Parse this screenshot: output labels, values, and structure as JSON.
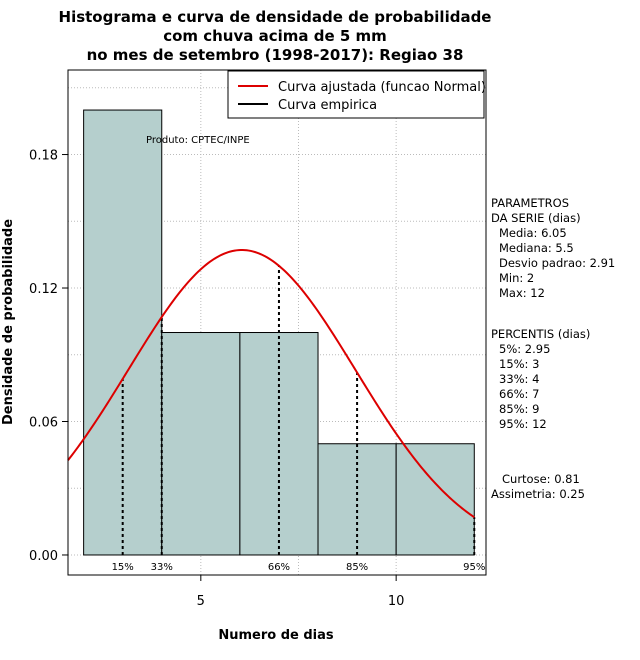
{
  "chart_data": {
    "type": "bar",
    "title": [
      "Histograma e curva de densidade de probabilidade",
      "com chuva acima de 5 mm",
      "no mes de setembro (1998-2017): Regiao 38"
    ],
    "xlabel": "Numero de dias",
    "ylabel": "Densidade de probabilidade",
    "xlim": [
      1.6,
      12.3
    ],
    "ylim": [
      -0.009,
      0.218
    ],
    "x_ticks": [
      5,
      10
    ],
    "y_ticks": [
      0.0,
      0.06,
      0.12,
      0.18
    ],
    "y_tick_labels": [
      "0.00",
      "0.06",
      "0.12",
      "0.18"
    ],
    "grid": true,
    "legend_position": "top-right",
    "bins": [
      {
        "x0": 2,
        "x1": 4,
        "density": 0.2
      },
      {
        "x0": 4,
        "x1": 6,
        "density": 0.1
      },
      {
        "x0": 6,
        "x1": 8,
        "density": 0.1
      },
      {
        "x0": 8,
        "x1": 10,
        "density": 0.05
      },
      {
        "x0": 10,
        "x1": 12,
        "density": 0.05
      }
    ],
    "bar_color": "#b5cfcd",
    "series": [
      {
        "name": "Curva ajustada (funcao Normal)",
        "type": "line",
        "color": "#dd0000",
        "mean": 6.05,
        "sd": 2.91
      },
      {
        "name": "Curva empirica",
        "type": "line",
        "color": "#000000"
      }
    ],
    "percentile_lines": [
      {
        "label": "15%",
        "x": 3
      },
      {
        "label": "33%",
        "x": 4
      },
      {
        "label": "66%",
        "x": 7
      },
      {
        "label": "85%",
        "x": 9
      },
      {
        "label": "95%",
        "x": 12
      }
    ],
    "annotation": "Produto: CPTEC/INPE",
    "side_panel": {
      "parametros": [
        "PARAMETROS",
        "DA SERIE (dias)",
        "Media: 6.05",
        "Mediana: 5.5",
        "Desvio padrao: 2.91",
        "Min: 2",
        "Max: 12"
      ],
      "percentis": [
        "PERCENTIS (dias)",
        "5%: 2.95",
        "15%: 3",
        "33%: 4",
        "66%: 7",
        "85%: 9",
        "95%: 12"
      ],
      "shape": [
        "Curtose: 0.81",
        "Assimetria: 0.25"
      ]
    }
  }
}
